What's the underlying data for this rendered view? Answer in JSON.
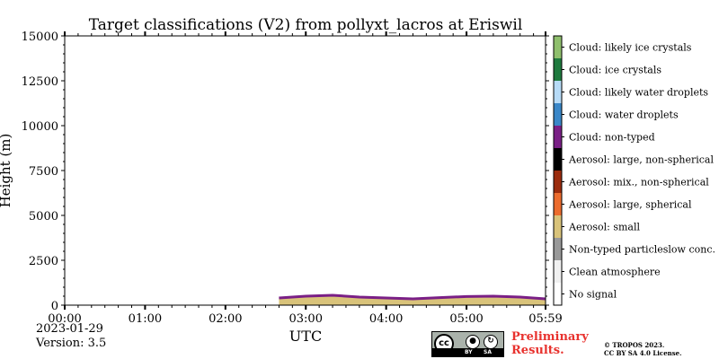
{
  "chart_data": {
    "type": "heatmap",
    "title": "Target classifications (V2) from pollyxt_lacros at Eriswil",
    "xlabel": "UTC",
    "ylabel": "Height (m)",
    "x_range": [
      "00:00",
      "05:59"
    ],
    "ylim": [
      0,
      15000
    ],
    "x_tick_labels": [
      "00:00",
      "01:00",
      "02:00",
      "03:00",
      "04:00",
      "05:00",
      "05:59"
    ],
    "y_tick_labels": [
      "0",
      "2500",
      "5000",
      "7500",
      "10000",
      "12500",
      "15000"
    ],
    "y_tick_values": [
      0,
      2500,
      5000,
      7500,
      10000,
      12500,
      15000
    ],
    "legend_position": "right",
    "classes": [
      {
        "label": "No signal",
        "color": "#ffffff"
      },
      {
        "label": "Clean atmosphere",
        "color": "#f0f0f0"
      },
      {
        "label": "Non-typed particleslow conc.",
        "color": "#999999"
      },
      {
        "label": "Aerosol: small",
        "color": "#d9c37a"
      },
      {
        "label": "Aerosol: large, spherical",
        "color": "#ec6c2e"
      },
      {
        "label": "Aerosol: mix., non-spherical",
        "color": "#9b2c0e"
      },
      {
        "label": "Aerosol: large, non-spherical",
        "color": "#000000"
      },
      {
        "label": "Cloud: non-typed",
        "color": "#7a1f86"
      },
      {
        "label": "Cloud: water droplets",
        "color": "#3a87c8"
      },
      {
        "label": "Cloud: likely water droplets",
        "color": "#b7dbf7"
      },
      {
        "label": "Cloud: ice crystals",
        "color": "#1f7a3e"
      },
      {
        "label": "Cloud: likely ice crystals",
        "color": "#8fbf6d"
      }
    ],
    "aerosol_layer": [
      {
        "t": "02:40",
        "top": 400
      },
      {
        "t": "03:00",
        "top": 500
      },
      {
        "t": "03:20",
        "top": 550
      },
      {
        "t": "03:40",
        "top": 450
      },
      {
        "t": "04:00",
        "top": 400
      },
      {
        "t": "04:20",
        "top": 350
      },
      {
        "t": "04:40",
        "top": 420
      },
      {
        "t": "05:00",
        "top": 480
      },
      {
        "t": "05:20",
        "top": 500
      },
      {
        "t": "05:40",
        "top": 450
      },
      {
        "t": "05:59",
        "top": 350
      }
    ]
  },
  "footer": {
    "date": "2023-01-29",
    "version": "Version: 3.5",
    "preliminary_line1": "Preliminary",
    "preliminary_line2": "Results.",
    "copyright_line1": "© TROPOS 2023.",
    "copyright_line2": "CC BY SA 4.0 License.",
    "cc_logo": "cc",
    "cc_by": "BY",
    "cc_sa": "SA"
  }
}
